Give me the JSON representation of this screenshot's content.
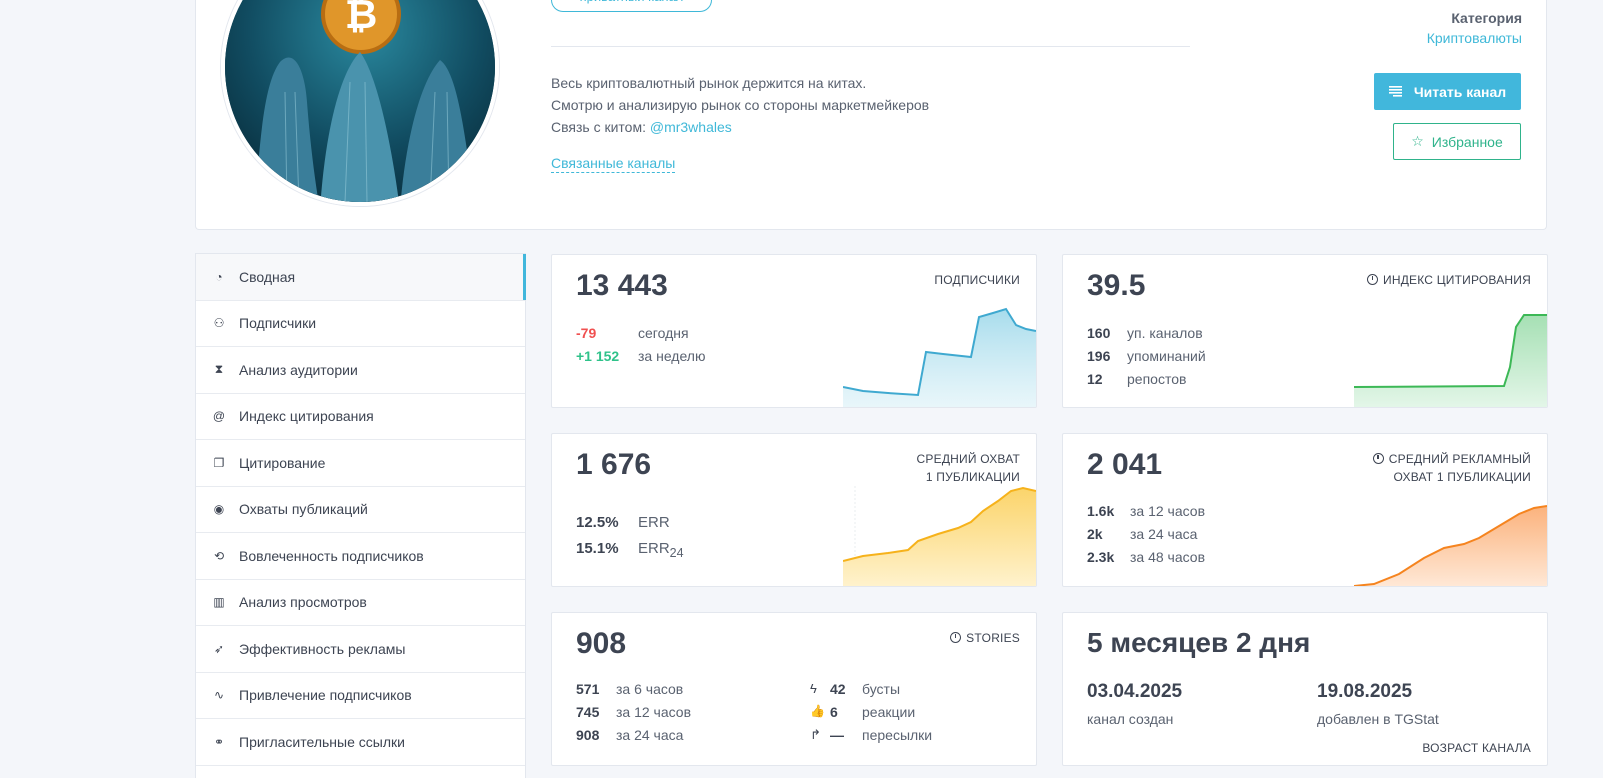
{
  "header": {
    "private_label": "приватный канал",
    "description": {
      "line1": "Весь криптовалютный рынок держится на китах.",
      "line2": "Смотрю и анализирую рынок со стороны маркетмейкеров",
      "line3_prefix": "Связь с китом:",
      "line3_link": "@mr3whales"
    },
    "related_link": "Связанные каналы",
    "category_title": "Категория",
    "category_value": "Криптовалюты",
    "read_button": "Читать канал",
    "favorite_button": "Избранное"
  },
  "sidebar": {
    "items": [
      {
        "label": "Сводная",
        "icon": "dashboard-icon",
        "glyph": "◔"
      },
      {
        "label": "Подписчики",
        "icon": "users-icon",
        "glyph": "⚇"
      },
      {
        "label": "Анализ аудитории",
        "icon": "hourglass-icon",
        "glyph": "⧗"
      },
      {
        "label": "Индекс цитирования",
        "icon": "at-icon",
        "glyph": "@"
      },
      {
        "label": "Цитирование",
        "icon": "quote-icon",
        "glyph": "❐"
      },
      {
        "label": "Охваты публикаций",
        "icon": "eye-icon",
        "glyph": "◉"
      },
      {
        "label": "Вовлеченность подписчиков",
        "icon": "engagement-icon",
        "glyph": "⟲"
      },
      {
        "label": "Анализ просмотров",
        "icon": "bar-chart-icon",
        "glyph": "▥"
      },
      {
        "label": "Эффективность рекламы",
        "icon": "rocket-icon",
        "glyph": "➶"
      },
      {
        "label": "Привлечение подписчиков",
        "icon": "trend-icon",
        "glyph": "∿"
      },
      {
        "label": "Пригласительные ссылки",
        "icon": "link-icon",
        "glyph": "⚭"
      }
    ]
  },
  "subscribers": {
    "value": "13 443",
    "label": "подписчики",
    "today_value": "-79",
    "today_label": "сегодня",
    "week_value": "+1 152",
    "week_label": "за неделю",
    "color": "#3fb8d8"
  },
  "citation": {
    "value": "39.5",
    "label": "индекс цитирования",
    "rows": [
      {
        "n": "160",
        "t": "уп. каналов"
      },
      {
        "n": "196",
        "t": "упоминаний"
      },
      {
        "n": "12",
        "t": "репостов"
      }
    ],
    "color": "#3cb856"
  },
  "reach": {
    "value": "1 676",
    "label_line1": "средний охват",
    "label_line2": "1 публикации",
    "err_value": "12.5%",
    "err_label": "ERR",
    "err24_value": "15.1%",
    "err24_label": "ERR",
    "err24_sub": "24",
    "color": "#f6b21b"
  },
  "ad_reach": {
    "value": "2 041",
    "label_line1": "средний рекламный",
    "label_line2": "охват 1 публикации",
    "rows": [
      {
        "n": "1.6k",
        "t": "за 12 часов"
      },
      {
        "n": "2k",
        "t": "за 24 часа"
      },
      {
        "n": "2.3k",
        "t": "за 48 часов"
      }
    ],
    "color": "#f5841f"
  },
  "stories": {
    "value": "908",
    "label": "stories",
    "left_rows": [
      {
        "n": "571",
        "t": "за 6 часов"
      },
      {
        "n": "745",
        "t": "за 12 часов"
      },
      {
        "n": "908",
        "t": "за 24 часа"
      }
    ],
    "right_rows": [
      {
        "icon": "bolt-icon",
        "glyph": "ϟ",
        "n": "42",
        "t": "бусты"
      },
      {
        "icon": "thumbs-up-icon",
        "glyph": "👍",
        "n": "6",
        "t": "реакции"
      },
      {
        "icon": "forward-icon",
        "glyph": "↱",
        "n": "—",
        "t": "пересылки"
      }
    ]
  },
  "age": {
    "value": "5 месяцев 2 дня",
    "created_date": "03.04.2025",
    "created_label": "канал создан",
    "added_date": "19.08.2025",
    "added_label": "добавлен в TGStat",
    "label": "возраст канала"
  }
}
